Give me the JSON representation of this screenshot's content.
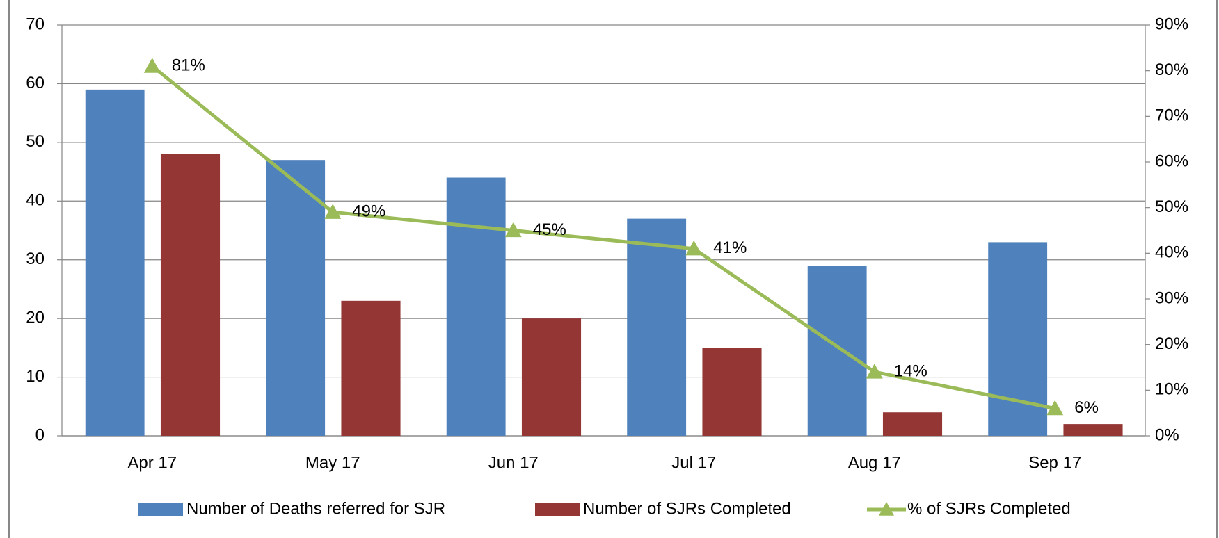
{
  "chart_data": {
    "type": "bar",
    "categories": [
      "Apr 17",
      "May 17",
      "Jun 17",
      "Jul 17",
      "Aug 17",
      "Sep 17"
    ],
    "series": [
      {
        "name": "Number of Deaths referred for SJR",
        "color": "#4f81bd",
        "values": [
          59,
          47,
          44,
          37,
          29,
          33
        ]
      },
      {
        "name": "Number of SJRs Completed",
        "color": "#943634",
        "values": [
          48,
          23,
          20,
          15,
          4,
          2
        ]
      },
      {
        "name": "% of SJRs Completed",
        "color": "#9bbb59",
        "type": "line",
        "axis": "y2",
        "values": [
          81,
          49,
          45,
          41,
          14,
          6
        ],
        "value_labels": [
          "81%",
          "49%",
          "45%",
          "41%",
          "14%",
          "6%"
        ]
      }
    ],
    "ylim": [
      0,
      70
    ],
    "yticks": [
      0,
      10,
      20,
      30,
      40,
      50,
      60,
      70
    ],
    "y2lim": [
      0,
      90
    ],
    "y2ticks": [
      {
        "value": 0,
        "label": "0%"
      },
      {
        "value": 10,
        "label": "10%"
      },
      {
        "value": 20,
        "label": "20%"
      },
      {
        "value": 30,
        "label": "30%"
      },
      {
        "value": 40,
        "label": "40%"
      },
      {
        "value": 50,
        "label": "50%"
      },
      {
        "value": 60,
        "label": "60%"
      },
      {
        "value": 70,
        "label": "70%"
      },
      {
        "value": 80,
        "label": "80%"
      },
      {
        "value": 90,
        "label": "90%"
      }
    ],
    "grid": true,
    "legend": "bottom"
  }
}
